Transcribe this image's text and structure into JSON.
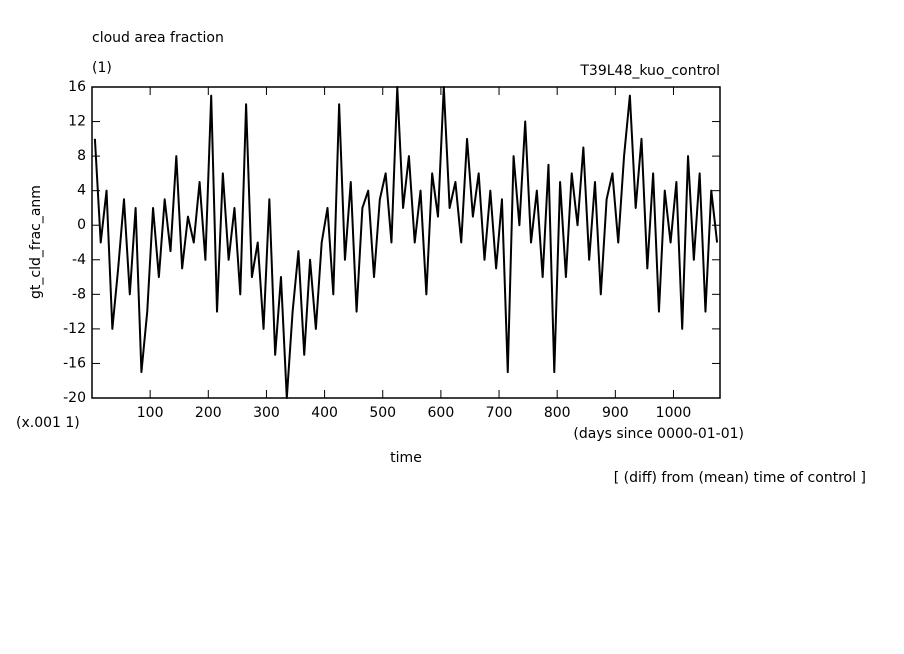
{
  "chart_data": {
    "type": "line",
    "title": "cloud area fraction",
    "subtitle": "(1)",
    "annotation": "T39L48_kuo_control",
    "ylabel": "gt_cld_frac_anm",
    "yunit": "(x.001 1)",
    "xunit": "(days since 0000-01-01)",
    "xlabel": "time",
    "footnote": "[ (diff) from (mean) time of control ]",
    "xlim": [
      0,
      1080
    ],
    "ylim": [
      -20,
      16
    ],
    "xticks": [
      100,
      200,
      300,
      400,
      500,
      600,
      700,
      800,
      900,
      1000
    ],
    "yticks": [
      -20,
      -16,
      -12,
      -8,
      -4,
      0,
      4,
      8,
      12,
      16
    ],
    "x": [
      5,
      15,
      25,
      35,
      45,
      55,
      65,
      75,
      85,
      95,
      105,
      115,
      125,
      135,
      145,
      155,
      165,
      175,
      185,
      195,
      205,
      215,
      225,
      235,
      245,
      255,
      265,
      275,
      285,
      295,
      305,
      315,
      325,
      335,
      345,
      355,
      365,
      375,
      385,
      395,
      405,
      415,
      425,
      435,
      445,
      455,
      465,
      475,
      485,
      495,
      505,
      515,
      525,
      535,
      545,
      555,
      565,
      575,
      585,
      595,
      605,
      615,
      625,
      635,
      645,
      655,
      665,
      675,
      685,
      695,
      705,
      715,
      725,
      735,
      745,
      755,
      765,
      775,
      785,
      795,
      805,
      815,
      825,
      835,
      845,
      855,
      865,
      875,
      885,
      895,
      905,
      915,
      925,
      935,
      945,
      955,
      965,
      975,
      985,
      995,
      1005,
      1015,
      1025,
      1035,
      1045,
      1055,
      1065,
      1075
    ],
    "series": [
      {
        "color": "#000000",
        "values": [
          10,
          -2,
          4,
          -12,
          -5,
          3,
          -8,
          2,
          -17,
          -10,
          2,
          -6,
          3,
          -3,
          8,
          -5,
          1,
          -2,
          5,
          -4,
          15,
          -10,
          6,
          -4,
          2,
          -8,
          14,
          -6,
          -2,
          -12,
          3,
          -15,
          -6,
          -20,
          -10,
          -3,
          -15,
          -4,
          -12,
          -2,
          2,
          -8,
          14,
          -4,
          5,
          -10,
          2,
          4,
          -6,
          3,
          6,
          -2,
          16,
          2,
          8,
          -2,
          4,
          -8,
          6,
          1,
          16,
          2,
          5,
          -2,
          10,
          1,
          6,
          -4,
          4,
          -5,
          3,
          -17,
          8,
          0,
          12,
          -2,
          4,
          -6,
          7,
          -17,
          5,
          -6,
          6,
          0,
          9,
          -4,
          5,
          -8,
          3,
          6,
          -2,
          8,
          15,
          2,
          10,
          -5,
          6,
          -10,
          4,
          -2,
          5,
          -12,
          8,
          -4,
          6,
          -10,
          4,
          -2
        ]
      }
    ]
  }
}
